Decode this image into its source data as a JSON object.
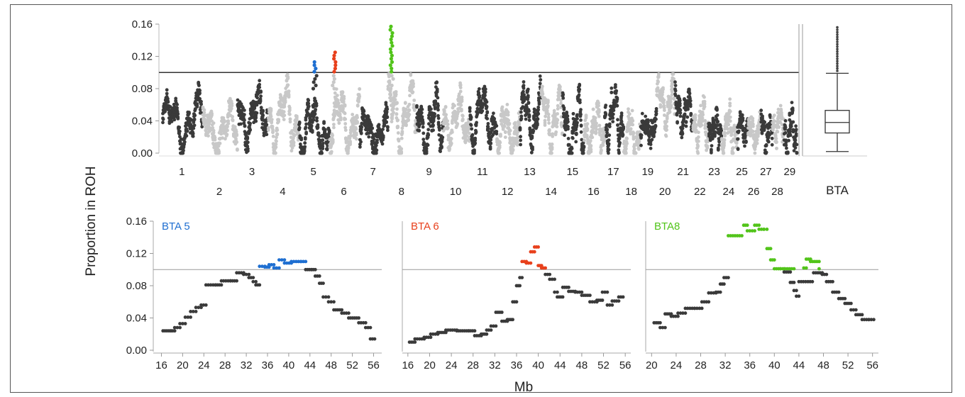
{
  "y_axis_label": "Proportion in ROH",
  "x_axis_label": "Mb",
  "colors": {
    "dark": "#3a3a3a",
    "light": "#c8c8c8",
    "bta5": "#1f6fd1",
    "bta6": "#e8401c",
    "bta8": "#52c41a",
    "threshold": "#333333"
  },
  "chart_data": [
    {
      "panel": "genome-manhattan",
      "type": "scatter",
      "title": "",
      "ylabel": "Proportion in ROH",
      "ylim": [
        0,
        0.16
      ],
      "yticks": [
        "0.16",
        "0.12",
        "0.08",
        "0.04",
        "0.00"
      ],
      "threshold": 0.1,
      "chromosomes": [
        {
          "label": "1",
          "size": 158,
          "base": 0.038,
          "amp": 0.035,
          "peak": null
        },
        {
          "label": "2",
          "size": 137,
          "base": 0.028,
          "amp": 0.028,
          "peak": null
        },
        {
          "label": "3",
          "size": 121,
          "base": 0.048,
          "amp": 0.035,
          "peak": null
        },
        {
          "label": "4",
          "size": 121,
          "base": 0.045,
          "amp": 0.045,
          "peak": null
        },
        {
          "label": "5",
          "size": 121,
          "base": 0.03,
          "amp": 0.035,
          "peak": {
            "pos": 0.45,
            "max": 0.114,
            "color": "#1f6fd1"
          }
        },
        {
          "label": "6",
          "size": 119,
          "base": 0.04,
          "amp": 0.04,
          "peak": {
            "pos": 0.1,
            "max": 0.128,
            "color": "#e8401c"
          }
        },
        {
          "label": "7",
          "size": 111,
          "base": 0.025,
          "amp": 0.025,
          "peak": null
        },
        {
          "label": "8",
          "size": 113,
          "base": 0.045,
          "amp": 0.05,
          "peak": {
            "pos": 0.05,
            "max": 0.157,
            "color": "#52c41a"
          }
        },
        {
          "label": "9",
          "size": 105,
          "base": 0.035,
          "amp": 0.045,
          "peak": null
        },
        {
          "label": "10",
          "size": 104,
          "base": 0.04,
          "amp": 0.035,
          "peak": null
        },
        {
          "label": "11",
          "size": 107,
          "base": 0.045,
          "amp": 0.04,
          "peak": null
        },
        {
          "label": "12",
          "size": 91,
          "base": 0.028,
          "amp": 0.025,
          "peak": null
        },
        {
          "label": "13",
          "size": 84,
          "base": 0.045,
          "amp": 0.04,
          "peak": null
        },
        {
          "label": "14",
          "size": 84,
          "base": 0.042,
          "amp": 0.04,
          "peak": null
        },
        {
          "label": "15",
          "size": 85,
          "base": 0.03,
          "amp": 0.05,
          "peak": null
        },
        {
          "label": "16",
          "size": 81,
          "base": 0.03,
          "amp": 0.03,
          "peak": null
        },
        {
          "label": "17",
          "size": 75,
          "base": 0.045,
          "amp": 0.045,
          "peak": null
        },
        {
          "label": "18",
          "size": 66,
          "base": 0.025,
          "amp": 0.03,
          "peak": null
        },
        {
          "label": "19",
          "size": 64,
          "base": 0.03,
          "amp": 0.015,
          "peak": null
        },
        {
          "label": "20",
          "size": 72,
          "base": 0.06,
          "amp": 0.035,
          "peak": null
        },
        {
          "label": "21",
          "size": 71,
          "base": 0.05,
          "amp": 0.03,
          "peak": null
        },
        {
          "label": "22",
          "size": 61,
          "base": 0.035,
          "amp": 0.035,
          "peak": null
        },
        {
          "label": "23",
          "size": 52,
          "base": 0.03,
          "amp": 0.02,
          "peak": null
        },
        {
          "label": "24",
          "size": 62,
          "base": 0.03,
          "amp": 0.03,
          "peak": null
        },
        {
          "label": "25",
          "size": 42,
          "base": 0.03,
          "amp": 0.015,
          "peak": null
        },
        {
          "label": "26",
          "size": 51,
          "base": 0.025,
          "amp": 0.02,
          "peak": null
        },
        {
          "label": "27",
          "size": 45,
          "base": 0.025,
          "amp": 0.025,
          "peak": null
        },
        {
          "label": "28",
          "size": 46,
          "base": 0.035,
          "amp": 0.02,
          "peak": null
        },
        {
          "label": "29",
          "size": 51,
          "base": 0.025,
          "amp": 0.03,
          "peak": null
        }
      ]
    },
    {
      "panel": "boxplot",
      "type": "box",
      "xlabel": "BTA",
      "ylim": [
        0,
        0.16
      ],
      "box": {
        "min": 0.002,
        "q1": 0.025,
        "median": 0.038,
        "q3": 0.053,
        "max": 0.099
      },
      "outliers": [
        0.102,
        0.105,
        0.108,
        0.111,
        0.114,
        0.117,
        0.12,
        0.123,
        0.126,
        0.129,
        0.132,
        0.135,
        0.138,
        0.141,
        0.144,
        0.147,
        0.15,
        0.153,
        0.156
      ]
    },
    {
      "panel": "bta5",
      "type": "scatter",
      "title": "BTA 5",
      "title_color": "#1f6fd1",
      "highlight_color": "#1f6fd1",
      "xlim": [
        15,
        57
      ],
      "xticks": [
        16,
        20,
        24,
        28,
        32,
        36,
        40,
        44,
        48,
        52,
        56
      ],
      "ylim": [
        0,
        0.16
      ],
      "yticks": [
        "0.16",
        "0.12",
        "0.08",
        "0.04",
        "0.00"
      ],
      "threshold": 0.1,
      "points": [
        [
          16.3,
          0.024
        ],
        [
          17.8,
          0.024
        ],
        [
          18.5,
          0.028
        ],
        [
          19.5,
          0.033
        ],
        [
          20.5,
          0.041
        ],
        [
          21.5,
          0.048
        ],
        [
          22.5,
          0.053
        ],
        [
          23.5,
          0.056
        ],
        [
          24.4,
          0.081
        ],
        [
          26.2,
          0.081
        ],
        [
          27.3,
          0.086
        ],
        [
          29,
          0.086
        ],
        [
          30.2,
          0.096
        ],
        [
          31.5,
          0.094
        ],
        [
          32.5,
          0.09
        ],
        [
          33.3,
          0.085
        ],
        [
          33.8,
          0.081
        ],
        [
          34.5,
          0.104
        ],
        [
          35.5,
          0.103
        ],
        [
          36.3,
          0.106
        ],
        [
          37.2,
          0.102
        ],
        [
          38.2,
          0.112
        ],
        [
          39.2,
          0.108
        ],
        [
          40.5,
          0.11
        ],
        [
          42.3,
          0.11
        ],
        [
          43.2,
          0.1
        ],
        [
          44.3,
          0.1
        ],
        [
          45,
          0.092
        ],
        [
          45.8,
          0.083
        ],
        [
          46.5,
          0.066
        ],
        [
          47.5,
          0.06
        ],
        [
          48.5,
          0.05
        ],
        [
          50,
          0.046
        ],
        [
          51.3,
          0.04
        ],
        [
          53.2,
          0.034
        ],
        [
          54.5,
          0.028
        ],
        [
          55.4,
          0.014
        ]
      ]
    },
    {
      "panel": "bta6",
      "type": "scatter",
      "title": "BTA 6",
      "title_color": "#e8401c",
      "highlight_color": "#e8401c",
      "xlim": [
        15.5,
        56.5
      ],
      "xticks": [
        16,
        20,
        24,
        28,
        32,
        36,
        40,
        44,
        48,
        52,
        56
      ],
      "ylim": [
        0,
        0.16
      ],
      "yticks": [],
      "threshold": 0.1,
      "points": [
        [
          16.3,
          0.01
        ],
        [
          17.3,
          0.014
        ],
        [
          19,
          0.016
        ],
        [
          20.2,
          0.02
        ],
        [
          21.5,
          0.022
        ],
        [
          23,
          0.025
        ],
        [
          25,
          0.024
        ],
        [
          27.2,
          0.024
        ],
        [
          28.3,
          0.018
        ],
        [
          29.5,
          0.02
        ],
        [
          30.5,
          0.025
        ],
        [
          31.3,
          0.03
        ],
        [
          32.2,
          0.047
        ],
        [
          33.3,
          0.036
        ],
        [
          34.3,
          0.038
        ],
        [
          35.3,
          0.06
        ],
        [
          36,
          0.08
        ],
        [
          36.6,
          0.09
        ],
        [
          37,
          0.11
        ],
        [
          37.8,
          0.108
        ],
        [
          38.6,
          0.122
        ],
        [
          39.3,
          0.128
        ],
        [
          40,
          0.105
        ],
        [
          40.6,
          0.102
        ],
        [
          41.3,
          0.094
        ],
        [
          42.1,
          0.088
        ],
        [
          43,
          0.072
        ],
        [
          43.5,
          0.066
        ],
        [
          44.5,
          0.078
        ],
        [
          45.6,
          0.073
        ],
        [
          46.8,
          0.072
        ],
        [
          48,
          0.068
        ],
        [
          49.5,
          0.06
        ],
        [
          50.8,
          0.062
        ],
        [
          51.8,
          0.072
        ],
        [
          52.7,
          0.056
        ],
        [
          53.6,
          0.061
        ],
        [
          54.8,
          0.066
        ]
      ]
    },
    {
      "panel": "bta8",
      "type": "scatter",
      "title": "BTA8",
      "title_color": "#52c41a",
      "highlight_color": "#52c41a",
      "xlim": [
        19.5,
        56.5
      ],
      "xticks": [
        20,
        24,
        28,
        32,
        36,
        40,
        44,
        48,
        52,
        56
      ],
      "ylim": [
        0,
        0.16
      ],
      "yticks": [],
      "threshold": 0.1,
      "points": [
        [
          20.4,
          0.034
        ],
        [
          21.4,
          0.028
        ],
        [
          22.2,
          0.045
        ],
        [
          23.2,
          0.042
        ],
        [
          24.3,
          0.046
        ],
        [
          25.5,
          0.052
        ],
        [
          27,
          0.052
        ],
        [
          28.2,
          0.06
        ],
        [
          29.3,
          0.071
        ],
        [
          30.5,
          0.072
        ],
        [
          31.2,
          0.082
        ],
        [
          31.8,
          0.09
        ],
        [
          32.5,
          0.142
        ],
        [
          35,
          0.155
        ],
        [
          35.6,
          0.148
        ],
        [
          36.8,
          0.155
        ],
        [
          37.5,
          0.15
        ],
        [
          38.3,
          0.15
        ],
        [
          38.8,
          0.126
        ],
        [
          39.4,
          0.112
        ],
        [
          40,
          0.101
        ],
        [
          41,
          0.101
        ],
        [
          44.8,
          0.102
        ],
        [
          45.2,
          0.113
        ],
        [
          45.9,
          0.11
        ],
        [
          47.3,
          0.101
        ],
        [
          41.6,
          0.097
        ],
        [
          42.6,
          0.084
        ],
        [
          43.2,
          0.074
        ],
        [
          43.6,
          0.067
        ],
        [
          44,
          0.085
        ],
        [
          46.4,
          0.096
        ],
        [
          47.8,
          0.094
        ],
        [
          48.5,
          0.085
        ],
        [
          49.5,
          0.072
        ],
        [
          50.5,
          0.064
        ],
        [
          51.5,
          0.058
        ],
        [
          52.5,
          0.05
        ],
        [
          53.3,
          0.044
        ],
        [
          54.3,
          0.038
        ],
        [
          55.4,
          0.038
        ]
      ]
    }
  ]
}
